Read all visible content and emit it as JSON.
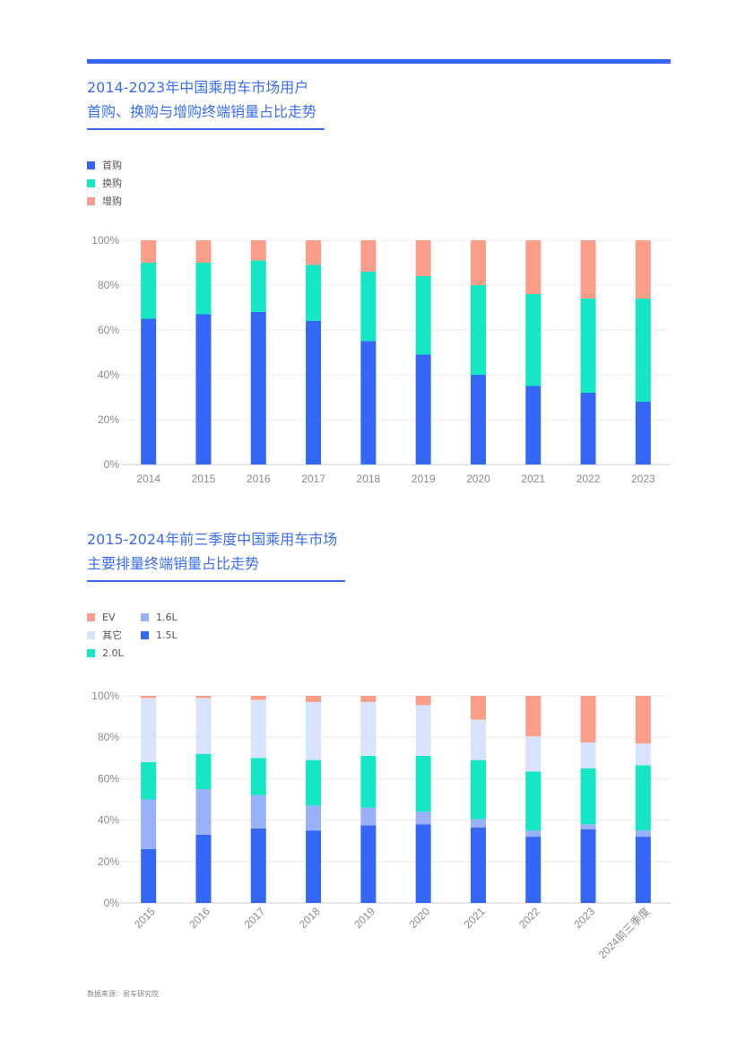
{
  "chart_data": [
    {
      "type": "bar",
      "stacked": true,
      "title_lines": [
        "2014-2023年中国乘用车市场用户",
        "首购、换购与增购终端销量占比走势"
      ],
      "categories": [
        "2014",
        "2015",
        "2016",
        "2017",
        "2018",
        "2019",
        "2020",
        "2021",
        "2022",
        "2023"
      ],
      "series": [
        {
          "name": "首购",
          "color": "#3467f5",
          "values": [
            65,
            67,
            68,
            64,
            55,
            49,
            40,
            35,
            32,
            28
          ]
        },
        {
          "name": "换购",
          "color": "#15e6c4",
          "values": [
            25,
            23,
            23,
            25,
            31,
            35,
            40,
            41,
            42,
            46
          ]
        },
        {
          "name": "增购",
          "color": "#fa9e8a",
          "values": [
            10,
            10,
            9,
            11,
            14,
            16,
            20,
            24,
            26,
            26
          ]
        }
      ],
      "legend_order": [
        0,
        1,
        2
      ],
      "ylim": [
        0,
        100
      ],
      "yticks": [
        "0%",
        "20%",
        "40%",
        "60%",
        "80%",
        "100%"
      ],
      "grid": true,
      "legend_position": "top-left"
    },
    {
      "type": "bar",
      "stacked": true,
      "title_lines": [
        "2015-2024年前三季度中国乘用车市场",
        "主要排量终端销量占比走势"
      ],
      "categories": [
        "2015",
        "2016",
        "2017",
        "2018",
        "2019",
        "2020",
        "2021",
        "2022",
        "2023",
        "2024前三季度"
      ],
      "series": [
        {
          "name": "1.5L",
          "color": "#3467f5",
          "values": [
            26,
            33,
            36,
            35,
            37.5,
            38,
            36.5,
            32,
            35.5,
            32
          ]
        },
        {
          "name": "1.6L",
          "color": "#98b1f8",
          "values": [
            24,
            22,
            16,
            12,
            8.5,
            6,
            4,
            3,
            2.5,
            3
          ]
        },
        {
          "name": "2.0L",
          "color": "#15e6c4",
          "values": [
            18,
            17,
            18,
            22,
            25,
            27,
            28.5,
            28.5,
            27,
            31.5
          ]
        },
        {
          "name": "其它",
          "color": "#d8e3fc",
          "values": [
            31,
            27,
            28,
            28,
            26,
            24.5,
            19.5,
            17,
            12.5,
            10.5
          ]
        },
        {
          "name": "EV",
          "color": "#fa9e8a",
          "values": [
            1,
            1,
            2,
            3,
            3,
            4.5,
            11.5,
            19.5,
            22.5,
            23
          ]
        }
      ],
      "legend_order": [
        4,
        1,
        3,
        0,
        2
      ],
      "ylim": [
        0,
        100
      ],
      "yticks": [
        "0%",
        "20%",
        "40%",
        "60%",
        "80%",
        "100%"
      ],
      "grid": true,
      "legend_position": "top-left",
      "rotated_xticks": true
    }
  ],
  "source_text": "数据来源：易车研究院",
  "colors": {
    "accent": "#3467f5",
    "title": "#3a6ef0"
  }
}
